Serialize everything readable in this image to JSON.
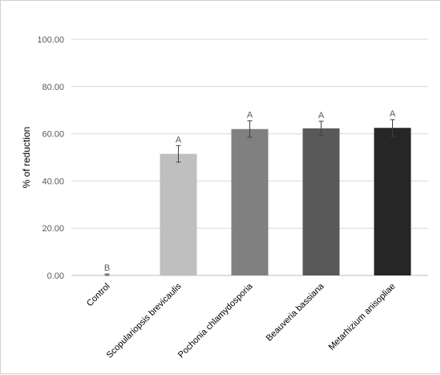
{
  "chart_data": {
    "type": "bar",
    "title": "",
    "xlabel": "",
    "ylabel": "% of reduction",
    "ylim": [
      0,
      100
    ],
    "yticks": [
      "0.00",
      "20.00",
      "40.00",
      "60.00",
      "80.00",
      "100.00"
    ],
    "grid": true,
    "legend": "none",
    "categories": [
      "Control",
      "Scopulariopsis brevicaulis",
      "Pochonia chlamydosporia",
      "Beauveria bassiana",
      "Metarhizium anisopliae"
    ],
    "values": [
      0.0,
      51.5,
      62.0,
      62.3,
      62.5
    ],
    "errors": [
      0.6,
      3.5,
      3.5,
      3.0,
      3.5
    ],
    "significance": [
      "B",
      "A",
      "A",
      "A",
      "A"
    ],
    "colors": [
      "#7f7f7f",
      "#bfbfbf",
      "#808080",
      "#595959",
      "#262626"
    ]
  }
}
